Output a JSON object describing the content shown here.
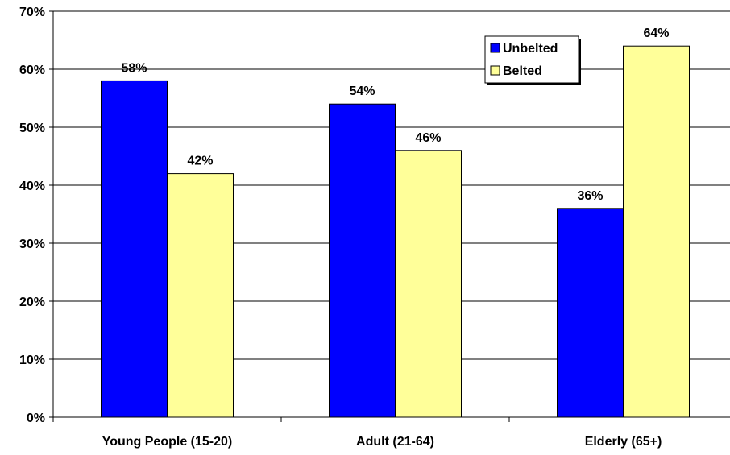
{
  "chart_data": {
    "type": "bar",
    "title": "",
    "xlabel": "",
    "ylabel": "",
    "categories": [
      "Young People (15-20)",
      "Adult (21-64)",
      "Elderly (65+)"
    ],
    "series": [
      {
        "name": "Unbelted",
        "values": [
          58,
          54,
          36
        ],
        "color": "#0000FF",
        "labels": [
          "58%",
          "54%",
          "36%"
        ]
      },
      {
        "name": "Belted",
        "values": [
          42,
          46,
          64
        ],
        "color": "#FFFF99",
        "labels": [
          "42%",
          "46%",
          "64%"
        ]
      }
    ],
    "ylim": [
      0,
      70
    ],
    "yticks": [
      0,
      10,
      20,
      30,
      40,
      50,
      60,
      70
    ],
    "ytick_labels": [
      "0%",
      "10%",
      "20%",
      "30%",
      "40%",
      "50%",
      "60%",
      "70%"
    ],
    "grid": true,
    "legend_position": "top-right"
  }
}
